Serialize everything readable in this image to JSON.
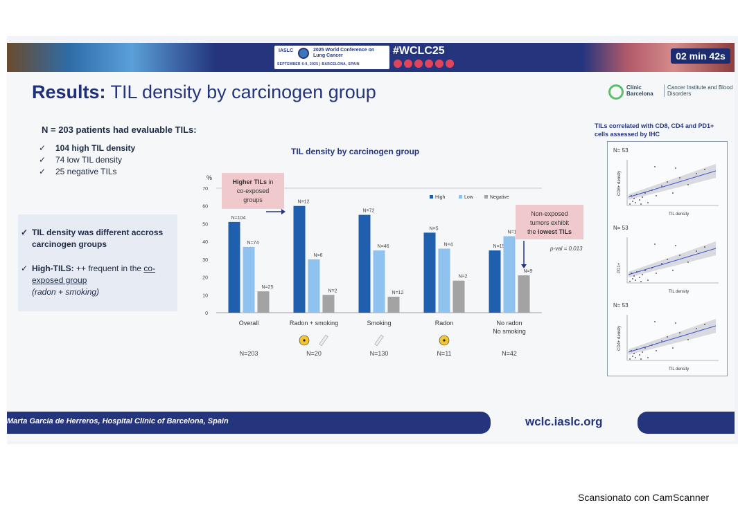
{
  "banner": {
    "org": "IASLC",
    "conference_title": "2025 World Conference on Lung Cancer",
    "dates_location": "SEPTEMBER 6-9, 2025 | BARCELONA, SPAIN",
    "hashtag": "#WCLC25",
    "timer": "02 min 42s"
  },
  "slide": {
    "title_bold": "Results:",
    "title_rest": " TIL density by carcinogen group",
    "logo_name": "Clínic Barcelona",
    "logo_sub": "Cancer Institute and Blood Disorders",
    "n_patients": "N = 203 patients had evaluable TILs:",
    "checklist": [
      "104 high TIL density",
      "74 low TIL density",
      "25 negative TILs"
    ],
    "checklist_bold_index": 0,
    "summary_1": "TIL density was different accross carcinogen groups",
    "summary_2_bold": "High-TILS:",
    "summary_2_rest": " ++ frequent in the ",
    "summary_2_underline": "co-exposed group",
    "summary_2_italic": "(radon + smoking)",
    "tick_glyph": "✓"
  },
  "chart_data": {
    "type": "bar",
    "title": "TIL density by carcinogen group",
    "ylabel": "%",
    "ylim": [
      0,
      70
    ],
    "yticks": [
      0,
      10,
      20,
      30,
      40,
      50,
      60,
      70
    ],
    "categories": [
      "Overall",
      "Radon + smoking",
      "Smoking",
      "Radon",
      "No radon\nNo smoking"
    ],
    "group_n": [
      "N=203",
      "N=20",
      "N=130",
      "N=11",
      "N=42"
    ],
    "category_icons": [
      [],
      [
        "radon",
        "cigarette"
      ],
      [
        "cigarette"
      ],
      [
        "radon"
      ],
      []
    ],
    "series": [
      {
        "name": "High",
        "color": "#1f5fae",
        "values": [
          51,
          60,
          55,
          45,
          35
        ],
        "labels": [
          "N=104",
          "N=12",
          "N=72",
          "N=5",
          "N=15"
        ]
      },
      {
        "name": "Low",
        "color": "#8fc2ee",
        "values": [
          37,
          30,
          35,
          36,
          43
        ],
        "labels": [
          "N=74",
          "N=6",
          "N=46",
          "N=4",
          "N=18"
        ]
      },
      {
        "name": "Negative",
        "color": "#a3a3a3",
        "values": [
          12,
          10,
          9,
          18,
          21
        ],
        "labels": [
          "N=25",
          "N=2",
          "N=12",
          "N=2",
          "N=9"
        ]
      }
    ],
    "legend_position": "top-right",
    "annotations": {
      "co_exposed": [
        "Higher TILs",
        " in",
        "co-exposed",
        "groups"
      ],
      "non_exposed": [
        "Non-exposed",
        "tumors exhibit",
        "the ",
        "lowest TILs"
      ],
      "pval": "p-val = 0,013"
    }
  },
  "correlation": {
    "title": "TILs correlated with CD8, CD4 and PD1+ cells assessed by IHC",
    "panels": [
      {
        "n": "N= 53",
        "ylabel": "CD8+ density",
        "xlabel": "TIL density"
      },
      {
        "n": "N= 53",
        "ylabel": "PD1+",
        "xlabel": "TIL density"
      },
      {
        "n": "N= 53",
        "ylabel": "CD4+ density",
        "xlabel": "TIL density"
      }
    ]
  },
  "footer": {
    "presenter": "Marta Garcia de Herreros,  Hospital Clínic of Barcelona, Spain",
    "url": "wclc.iaslc.org"
  },
  "scanner_watermark": "Scansionato con CamScanner",
  "colors": {
    "navy": "#24357e",
    "high": "#1f5fae",
    "low": "#8fc2ee",
    "negative": "#a3a3a3",
    "annotation_bg": "#f0c9cc"
  }
}
